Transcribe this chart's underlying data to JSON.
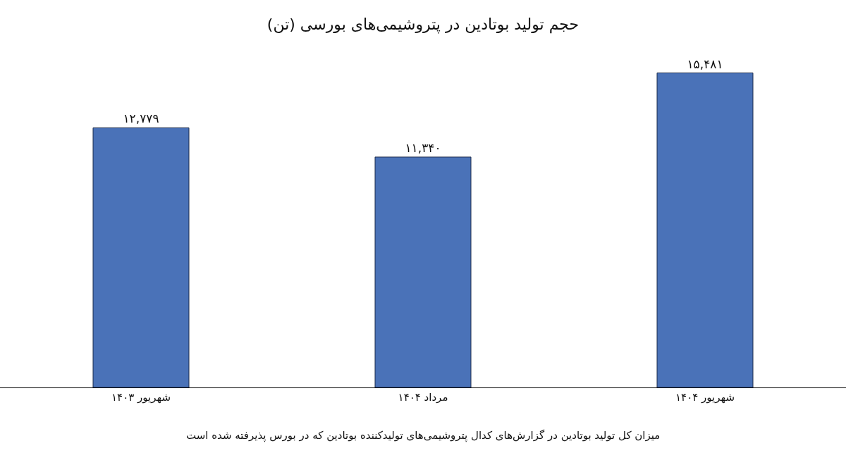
{
  "chart_data": {
    "type": "bar",
    "title": "حجم تولید بوتادین در پتروشیمی‌های بورسی (تن)",
    "categories": [
      "شهریور ۱۴۰۳",
      "مرداد ۱۴۰۴",
      "شهریور ۱۴۰۴"
    ],
    "values": [
      12779,
      11340,
      15481
    ],
    "value_labels": [
      "۱۲,۷۷۹",
      "۱۱,۳۴۰",
      "۱۵,۴۸۱"
    ],
    "color": "#4a72b8",
    "tick_labels": "x",
    "legend": false,
    "annotations": [
      "میزان کل تولید بوتادین در گزارش‌های کدال پتروشیمی‌های تولیدکننده بوتادین که در بورس پذیرفته شده است"
    ]
  }
}
